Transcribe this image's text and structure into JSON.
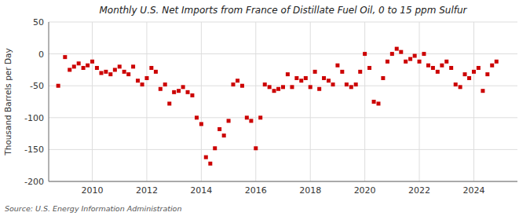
{
  "chart_data": {
    "type": "scatter",
    "title": "Monthly U.S. Net Imports from France of Distillate Fuel Oil, 0 to 15 ppm Sulfur",
    "y_label": "Thousand Barrels per Day",
    "annotations": [
      "Source: U.S. Energy Information Administration"
    ],
    "color": "#cc0000",
    "marker": "square",
    "grid": true,
    "xlim": [
      2008.4,
      2025.6
    ],
    "xticks": [
      2010,
      2012,
      2014,
      2016,
      2018,
      2020,
      2022,
      2024
    ],
    "ylim": [
      -200,
      50
    ],
    "yticks": [
      -200,
      -150,
      -100,
      -50,
      0,
      50
    ],
    "x": [
      2008.75,
      2009.0,
      2009.17,
      2009.33,
      2009.5,
      2009.67,
      2009.83,
      2010.0,
      2010.17,
      2010.33,
      2010.5,
      2010.67,
      2010.83,
      2011.0,
      2011.17,
      2011.33,
      2011.5,
      2011.67,
      2011.83,
      2012.0,
      2012.17,
      2012.33,
      2012.5,
      2012.67,
      2012.83,
      2013.0,
      2013.17,
      2013.33,
      2013.5,
      2013.67,
      2013.83,
      2014.0,
      2014.17,
      2014.33,
      2014.5,
      2014.67,
      2014.83,
      2015.0,
      2015.17,
      2015.33,
      2015.5,
      2015.67,
      2015.83,
      2016.0,
      2016.17,
      2016.33,
      2016.5,
      2016.67,
      2016.83,
      2017.0,
      2017.17,
      2017.33,
      2017.5,
      2017.67,
      2017.83,
      2018.0,
      2018.17,
      2018.33,
      2018.5,
      2018.67,
      2018.83,
      2019.0,
      2019.17,
      2019.33,
      2019.5,
      2019.67,
      2019.83,
      2020.0,
      2020.17,
      2020.33,
      2020.5,
      2020.67,
      2020.83,
      2021.0,
      2021.17,
      2021.33,
      2021.5,
      2021.67,
      2021.83,
      2022.0,
      2022.17,
      2022.33,
      2022.5,
      2022.67,
      2022.83,
      2023.0,
      2023.17,
      2023.33,
      2023.5,
      2023.67,
      2023.83,
      2024.0,
      2024.17,
      2024.33,
      2024.5,
      2024.67,
      2024.83
    ],
    "values": [
      -50,
      -5,
      -25,
      -20,
      -15,
      -22,
      -18,
      -12,
      -22,
      -30,
      -28,
      -32,
      -25,
      -20,
      -28,
      -32,
      -20,
      -42,
      -48,
      -38,
      -22,
      -28,
      -55,
      -48,
      -78,
      -60,
      -58,
      -52,
      -60,
      -65,
      -100,
      -110,
      -162,
      -172,
      -148,
      -118,
      -128,
      -105,
      -48,
      -42,
      -50,
      -100,
      -105,
      -148,
      -100,
      -48,
      -52,
      -58,
      -55,
      -52,
      -32,
      -52,
      -38,
      -42,
      -38,
      -52,
      -28,
      -55,
      -38,
      -42,
      -48,
      -18,
      -28,
      -48,
      -52,
      -48,
      -28,
      0,
      -22,
      -75,
      -78,
      -38,
      -12,
      0,
      8,
      3,
      -12,
      -8,
      -3,
      -12,
      0,
      -18,
      -22,
      -28,
      -18,
      -12,
      -22,
      -48,
      -52,
      -32,
      -38,
      -28,
      -22,
      -58,
      -32,
      -18,
      -12
    ]
  }
}
